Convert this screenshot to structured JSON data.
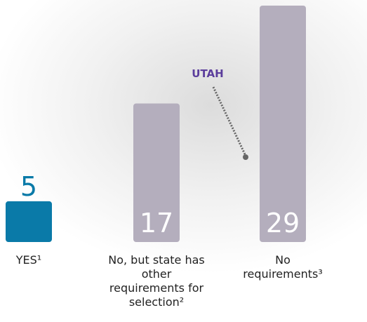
{
  "chart_data": {
    "type": "bar",
    "categories": [
      "YES¹",
      "No, but state has other requirements for selection²",
      "No requirements³"
    ],
    "values": [
      5,
      17,
      29
    ],
    "colors": [
      "#0a7aa8",
      "#b4aebd",
      "#b4aebd"
    ],
    "annotation": {
      "text": "UTAH",
      "color": "#5b3d9c",
      "target": 2
    }
  }
}
